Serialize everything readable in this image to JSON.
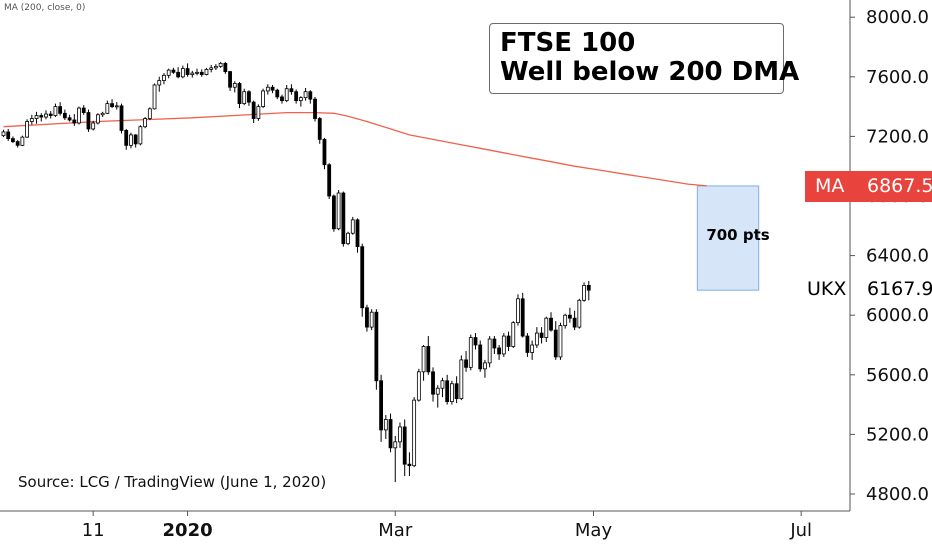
{
  "indicator_label": "MA (200, close, 0)",
  "annotation": {
    "title_line1": "FTSE 100",
    "title_line2": "Well below 200 DMA",
    "box_label": "700 pts",
    "source": "Source: LCG / TradingView (June 1, 2020)"
  },
  "badges": {
    "ma_name": "MA",
    "ma_value": "6867.5",
    "price_name": "UKX",
    "price_value": "6167.9"
  },
  "colors": {
    "ma_line": "#f0624d",
    "ma_badge": "#e8433c",
    "candle": "#000000",
    "up_fill": "#ffffff",
    "highlight_fill": "#d6e6f8",
    "highlight_border": "#7fb0e6",
    "axis_line": "#555555"
  },
  "chart_data": {
    "type": "candlestick",
    "title": "FTSE 100",
    "y_axis": {
      "position": "right",
      "ylim": [
        4700,
        8150
      ],
      "ticks": [
        4800,
        5200,
        5600,
        6000,
        6400,
        6800,
        7200,
        7600,
        8000
      ],
      "tick_labels": [
        "4800.0",
        "5200.0",
        "5600.0",
        "6000.0",
        "6400.0",
        "6800.0",
        "7200.0",
        "7600.0",
        "8000.0"
      ]
    },
    "x_axis": {
      "tick_labels": [
        {
          "label": "11",
          "bar": 19,
          "bold": false
        },
        {
          "label": "2020",
          "bar": 39,
          "bold": true
        },
        {
          "label": "Mar",
          "bar": 83,
          "bold": false
        },
        {
          "label": "May",
          "bar": 125,
          "bold": false
        },
        {
          "label": "Jul",
          "bar": 169,
          "bold": false
        }
      ]
    },
    "grid": false,
    "ohlc": [
      [
        7205,
        7245,
        7195,
        7230
      ],
      [
        7230,
        7250,
        7170,
        7185
      ],
      [
        7185,
        7200,
        7155,
        7165
      ],
      [
        7165,
        7175,
        7125,
        7140
      ],
      [
        7140,
        7205,
        7135,
        7195
      ],
      [
        7195,
        7315,
        7190,
        7300
      ],
      [
        7300,
        7345,
        7280,
        7320
      ],
      [
        7320,
        7365,
        7285,
        7340
      ],
      [
        7340,
        7355,
        7300,
        7330
      ],
      [
        7330,
        7375,
        7315,
        7350
      ],
      [
        7350,
        7370,
        7320,
        7340
      ],
      [
        7340,
        7420,
        7330,
        7400
      ],
      [
        7400,
        7430,
        7340,
        7355
      ],
      [
        7355,
        7380,
        7310,
        7325
      ],
      [
        7325,
        7345,
        7300,
        7310
      ],
      [
        7310,
        7350,
        7270,
        7290
      ],
      [
        7290,
        7400,
        7280,
        7390
      ],
      [
        7390,
        7410,
        7345,
        7360
      ],
      [
        7360,
        7380,
        7230,
        7250
      ],
      [
        7250,
        7305,
        7240,
        7290
      ],
      [
        7290,
        7355,
        7280,
        7345
      ],
      [
        7345,
        7365,
        7330,
        7355
      ],
      [
        7355,
        7440,
        7350,
        7420
      ],
      [
        7420,
        7450,
        7390,
        7400
      ],
      [
        7400,
        7430,
        7380,
        7405
      ],
      [
        7405,
        7420,
        7220,
        7240
      ],
      [
        7240,
        7250,
        7110,
        7140
      ],
      [
        7140,
        7225,
        7120,
        7210
      ],
      [
        7210,
        7215,
        7125,
        7150
      ],
      [
        7150,
        7275,
        7140,
        7265
      ],
      [
        7265,
        7330,
        7255,
        7320
      ],
      [
        7320,
        7395,
        7310,
        7385
      ],
      [
        7385,
        7555,
        7380,
        7545
      ],
      [
        7545,
        7600,
        7500,
        7575
      ],
      [
        7575,
        7625,
        7550,
        7610
      ],
      [
        7610,
        7655,
        7590,
        7645
      ],
      [
        7645,
        7660,
        7620,
        7630
      ],
      [
        7630,
        7665,
        7590,
        7600
      ],
      [
        7600,
        7675,
        7590,
        7655
      ],
      [
        7655,
        7690,
        7600,
        7615
      ],
      [
        7615,
        7640,
        7595,
        7625
      ],
      [
        7625,
        7655,
        7610,
        7630
      ],
      [
        7630,
        7650,
        7600,
        7615
      ],
      [
        7615,
        7660,
        7610,
        7650
      ],
      [
        7650,
        7680,
        7630,
        7660
      ],
      [
        7660,
        7685,
        7645,
        7670
      ],
      [
        7670,
        7700,
        7660,
        7690
      ],
      [
        7690,
        7700,
        7620,
        7635
      ],
      [
        7635,
        7640,
        7505,
        7530
      ],
      [
        7530,
        7570,
        7495,
        7555
      ],
      [
        7555,
        7565,
        7390,
        7420
      ],
      [
        7420,
        7520,
        7410,
        7500
      ],
      [
        7500,
        7510,
        7405,
        7430
      ],
      [
        7430,
        7440,
        7290,
        7320
      ],
      [
        7320,
        7415,
        7305,
        7400
      ],
      [
        7400,
        7520,
        7390,
        7505
      ],
      [
        7505,
        7550,
        7480,
        7530
      ],
      [
        7530,
        7545,
        7490,
        7510
      ],
      [
        7510,
        7520,
        7450,
        7465
      ],
      [
        7465,
        7480,
        7420,
        7440
      ],
      [
        7440,
        7545,
        7430,
        7520
      ],
      [
        7520,
        7550,
        7480,
        7500
      ],
      [
        7500,
        7515,
        7420,
        7440
      ],
      [
        7440,
        7470,
        7400,
        7460
      ],
      [
        7460,
        7525,
        7440,
        7500
      ],
      [
        7500,
        7510,
        7420,
        7450
      ],
      [
        7450,
        7465,
        7300,
        7320
      ],
      [
        7320,
        7330,
        7150,
        7180
      ],
      [
        7180,
        7190,
        6980,
        7010
      ],
      [
        7010,
        7020,
        6780,
        6800
      ],
      [
        6800,
        6810,
        6560,
        6580
      ],
      [
        6580,
        6840,
        6570,
        6820
      ],
      [
        6820,
        6830,
        6460,
        6480
      ],
      [
        6480,
        6560,
        6470,
        6550
      ],
      [
        6550,
        6660,
        6540,
        6640
      ],
      [
        6640,
        6650,
        6420,
        6460
      ],
      [
        6460,
        6480,
        5990,
        6050
      ],
      [
        6050,
        6070,
        5890,
        5920
      ],
      [
        5920,
        6040,
        5900,
        6020
      ],
      [
        6020,
        6040,
        5500,
        5560
      ],
      [
        5560,
        5600,
        5150,
        5230
      ],
      [
        5230,
        5330,
        5170,
        5300
      ],
      [
        5300,
        5340,
        5080,
        5110
      ],
      [
        5110,
        5190,
        4880,
        5150
      ],
      [
        5150,
        5280,
        5110,
        5250
      ],
      [
        5250,
        5300,
        4920,
        5000
      ],
      [
        5000,
        5080,
        4920,
        4990
      ],
      [
        4990,
        5450,
        4980,
        5430
      ],
      [
        5430,
        5640,
        5420,
        5620
      ],
      [
        5620,
        5800,
        5560,
        5790
      ],
      [
        5790,
        5860,
        5600,
        5620
      ],
      [
        5620,
        5650,
        5420,
        5470
      ],
      [
        5470,
        5530,
        5380,
        5510
      ],
      [
        5510,
        5580,
        5450,
        5560
      ],
      [
        5560,
        5600,
        5400,
        5420
      ],
      [
        5420,
        5560,
        5400,
        5540
      ],
      [
        5540,
        5590,
        5410,
        5440
      ],
      [
        5440,
        5730,
        5430,
        5700
      ],
      [
        5700,
        5760,
        5620,
        5650
      ],
      [
        5650,
        5870,
        5630,
        5850
      ],
      [
        5850,
        5880,
        5770,
        5800
      ],
      [
        5800,
        5830,
        5620,
        5640
      ],
      [
        5640,
        5700,
        5580,
        5680
      ],
      [
        5680,
        5860,
        5650,
        5840
      ],
      [
        5840,
        5860,
        5740,
        5780
      ],
      [
        5780,
        5800,
        5700,
        5740
      ],
      [
        5740,
        5880,
        5720,
        5860
      ],
      [
        5860,
        5890,
        5760,
        5790
      ],
      [
        5790,
        5960,
        5780,
        5950
      ],
      [
        5950,
        6140,
        5930,
        6110
      ],
      [
        6110,
        6150,
        5850,
        5860
      ],
      [
        5860,
        5880,
        5720,
        5750
      ],
      [
        5750,
        5830,
        5700,
        5800
      ],
      [
        5800,
        5920,
        5780,
        5880
      ],
      [
        5880,
        5920,
        5810,
        5850
      ],
      [
        5850,
        5990,
        5820,
        5980
      ],
      [
        5980,
        6020,
        5890,
        5900
      ],
      [
        5900,
        5960,
        5700,
        5720
      ],
      [
        5720,
        5950,
        5700,
        5930
      ],
      [
        5930,
        6010,
        5910,
        6000
      ],
      [
        6000,
        6050,
        5950,
        5980
      ],
      [
        5980,
        6030,
        5900,
        5920
      ],
      [
        5920,
        6110,
        5910,
        6100
      ],
      [
        6100,
        6220,
        6090,
        6200
      ],
      [
        6200,
        6230,
        6100,
        6168
      ]
    ],
    "ma_200": [
      [
        0,
        7265
      ],
      [
        20,
        7300
      ],
      [
        40,
        7325
      ],
      [
        60,
        7360
      ],
      [
        66,
        7360
      ],
      [
        70,
        7355
      ],
      [
        73,
        7335
      ],
      [
        77,
        7300
      ],
      [
        82,
        7250
      ],
      [
        86,
        7210
      ],
      [
        91,
        7180
      ],
      [
        96,
        7150
      ],
      [
        101,
        7120
      ],
      [
        106,
        7090
      ],
      [
        111,
        7060
      ],
      [
        116,
        7030
      ],
      [
        121,
        7000
      ],
      [
        126,
        6975
      ],
      [
        131,
        6950
      ],
      [
        136,
        6925
      ],
      [
        141,
        6900
      ],
      [
        145,
        6880
      ],
      [
        149,
        6867.5
      ]
    ],
    "highlight_box": {
      "x_start_bar": 147,
      "x_end_bar": 160,
      "y_low": 6167.9,
      "y_high": 6867.5,
      "label": "700 pts"
    }
  }
}
